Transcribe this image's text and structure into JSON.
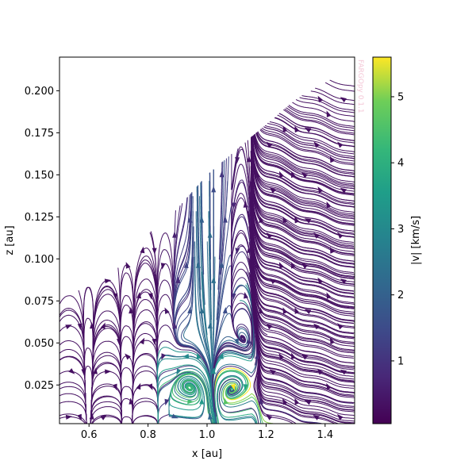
{
  "chart_data": {
    "type": "streamplot",
    "title": "",
    "xlabel": "x [au]",
    "ylabel": "z [au]",
    "xlim": [
      0.5,
      1.5
    ],
    "ylim": [
      0.002,
      0.22
    ],
    "x_ticks": [
      0.6,
      0.8,
      1.0,
      1.2,
      1.4
    ],
    "x_tick_labels": [
      "0.6",
      "0.8",
      "1.0",
      "1.2",
      "1.4"
    ],
    "y_ticks": [
      0.025,
      0.05,
      0.075,
      0.1,
      0.125,
      0.15,
      0.175,
      0.2
    ],
    "y_tick_labels": [
      "0.025",
      "0.050",
      "0.075",
      "0.100",
      "0.125",
      "0.150",
      "0.175",
      "0.200"
    ],
    "grid": false,
    "colormap": "viridis",
    "colorbar": {
      "label": "|v| [km/s]",
      "range": [
        0.05,
        5.6
      ],
      "ticks": [
        1,
        2,
        3,
        4,
        5
      ],
      "tick_labels": [
        "1",
        "2",
        "3",
        "4",
        "5"
      ]
    },
    "domain_upper_boundary": {
      "x": [
        0.55,
        0.6,
        0.7,
        0.8,
        0.9,
        1.0,
        1.1,
        1.2,
        1.3,
        1.4,
        1.45
      ],
      "z": [
        0.08,
        0.085,
        0.095,
        0.115,
        0.13,
        0.15,
        0.165,
        0.18,
        0.195,
        0.205,
        0.21
      ]
    },
    "vortices": [
      {
        "name": "left",
        "center": [
          0.94,
          0.022
        ],
        "max_speed": 4.3
      },
      {
        "name": "right",
        "center": [
          1.09,
          0.022
        ],
        "max_speed": 5.5
      }
    ],
    "watermark": "FARGOpy 0.1.1"
  },
  "colors": {
    "viridis_low": "#440154",
    "viridis_mid": "#21918c",
    "viridis_high": "#fde725",
    "watermark": "#f4c6d6"
  }
}
